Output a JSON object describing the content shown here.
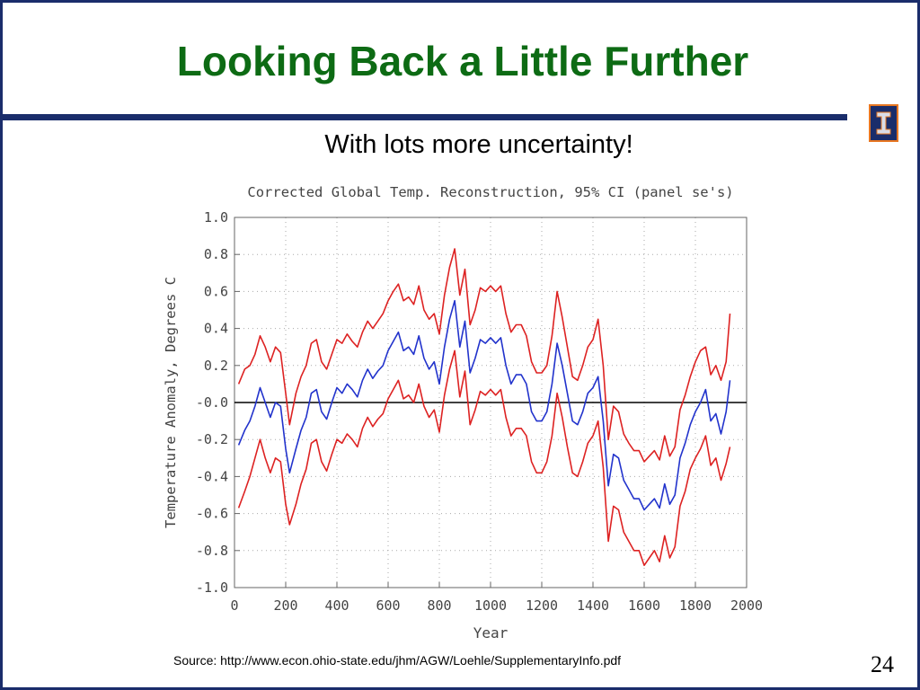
{
  "slide": {
    "title": "Looking Back a Little Further",
    "subtitle": "With lots more uncertainty!",
    "source": "Source: http://www.econ.ohio-state.edu/jhm/AGW/Loehle/SupplementaryInfo.pdf",
    "page_number": "24",
    "colors": {
      "title": "#0d6b14",
      "border": "#1a2d6b",
      "logo_accent": "#e87722"
    },
    "logo_icon": "illinois-block-i-icon"
  },
  "chart_data": {
    "type": "line",
    "title": "Corrected Global Temp. Reconstruction, 95% CI (panel se's)",
    "xlabel": "Year",
    "ylabel": "Temperature Anomaly, Degrees C",
    "xlim": [
      0,
      2000
    ],
    "ylim": [
      -1.0,
      1.0
    ],
    "x_tick_labels": [
      "0",
      "200",
      "400",
      "600",
      "800",
      "1000",
      "1200",
      "1400",
      "1600",
      "1800",
      "2000"
    ],
    "y_tick_labels": [
      "1.0",
      "0.8",
      "0.6",
      "0.4",
      "0.2",
      "-0.0",
      "-0.2",
      "-0.4",
      "-0.6",
      "-0.8",
      "-1.0"
    ],
    "grid": true,
    "reference_line": 0.0,
    "x": [
      16,
      40,
      60,
      80,
      100,
      120,
      140,
      160,
      180,
      200,
      215,
      240,
      260,
      280,
      300,
      320,
      340,
      360,
      380,
      400,
      420,
      440,
      460,
      480,
      500,
      520,
      540,
      560,
      580,
      600,
      620,
      640,
      660,
      680,
      700,
      720,
      740,
      760,
      780,
      800,
      820,
      840,
      860,
      880,
      900,
      920,
      940,
      960,
      980,
      1000,
      1020,
      1040,
      1060,
      1080,
      1100,
      1120,
      1140,
      1160,
      1180,
      1200,
      1220,
      1240,
      1260,
      1280,
      1300,
      1320,
      1340,
      1360,
      1380,
      1400,
      1420,
      1440,
      1460,
      1480,
      1500,
      1520,
      1540,
      1560,
      1580,
      1600,
      1620,
      1640,
      1660,
      1680,
      1700,
      1720,
      1740,
      1760,
      1780,
      1800,
      1820,
      1840,
      1860,
      1880,
      1900,
      1920,
      1935
    ],
    "series": [
      {
        "color": "#2233cc",
        "values": [
          -0.23,
          -0.15,
          -0.1,
          -0.02,
          0.08,
          0.0,
          -0.08,
          0.0,
          -0.02,
          -0.25,
          -0.38,
          -0.25,
          -0.15,
          -0.08,
          0.05,
          0.07,
          -0.05,
          -0.09,
          0.0,
          0.08,
          0.05,
          0.1,
          0.07,
          0.03,
          0.12,
          0.18,
          0.13,
          0.17,
          0.2,
          0.28,
          0.33,
          0.38,
          0.28,
          0.3,
          0.26,
          0.36,
          0.24,
          0.18,
          0.22,
          0.1,
          0.3,
          0.45,
          0.55,
          0.3,
          0.44,
          0.16,
          0.24,
          0.34,
          0.32,
          0.35,
          0.32,
          0.35,
          0.2,
          0.1,
          0.15,
          0.15,
          0.1,
          -0.05,
          -0.1,
          -0.1,
          -0.05,
          0.1,
          0.32,
          0.2,
          0.05,
          -0.1,
          -0.12,
          -0.05,
          0.05,
          0.08,
          0.14,
          -0.1,
          -0.45,
          -0.28,
          -0.3,
          -0.42,
          -0.47,
          -0.52,
          -0.52,
          -0.58,
          -0.55,
          -0.52,
          -0.57,
          -0.44,
          -0.55,
          -0.5,
          -0.3,
          -0.22,
          -0.12,
          -0.05,
          0.0,
          0.07,
          -0.1,
          -0.06,
          -0.17,
          -0.05,
          0.12
        ]
      },
      {
        "color": "#dd2222",
        "values": [
          0.1,
          0.18,
          0.2,
          0.26,
          0.36,
          0.3,
          0.22,
          0.3,
          0.27,
          0.05,
          -0.12,
          0.05,
          0.14,
          0.2,
          0.32,
          0.34,
          0.22,
          0.18,
          0.26,
          0.34,
          0.32,
          0.37,
          0.33,
          0.3,
          0.38,
          0.44,
          0.4,
          0.44,
          0.48,
          0.55,
          0.6,
          0.64,
          0.55,
          0.57,
          0.53,
          0.63,
          0.5,
          0.45,
          0.48,
          0.37,
          0.58,
          0.73,
          0.83,
          0.58,
          0.72,
          0.42,
          0.5,
          0.62,
          0.6,
          0.63,
          0.6,
          0.63,
          0.48,
          0.38,
          0.42,
          0.42,
          0.36,
          0.22,
          0.16,
          0.16,
          0.2,
          0.36,
          0.6,
          0.46,
          0.3,
          0.14,
          0.12,
          0.2,
          0.3,
          0.34,
          0.45,
          0.2,
          -0.2,
          -0.02,
          -0.05,
          -0.17,
          -0.22,
          -0.26,
          -0.26,
          -0.32,
          -0.29,
          -0.26,
          -0.31,
          -0.18,
          -0.29,
          -0.24,
          -0.04,
          0.04,
          0.14,
          0.22,
          0.28,
          0.3,
          0.15,
          0.2,
          0.12,
          0.22,
          0.48
        ]
      },
      {
        "color": "#dd2222",
        "values": [
          -0.57,
          -0.48,
          -0.4,
          -0.3,
          -0.2,
          -0.3,
          -0.38,
          -0.3,
          -0.32,
          -0.55,
          -0.66,
          -0.55,
          -0.44,
          -0.36,
          -0.22,
          -0.2,
          -0.32,
          -0.37,
          -0.28,
          -0.2,
          -0.22,
          -0.17,
          -0.2,
          -0.24,
          -0.14,
          -0.08,
          -0.13,
          -0.09,
          -0.06,
          0.02,
          0.07,
          0.12,
          0.02,
          0.04,
          0.0,
          0.1,
          -0.02,
          -0.08,
          -0.04,
          -0.16,
          0.04,
          0.18,
          0.28,
          0.03,
          0.17,
          -0.12,
          -0.04,
          0.06,
          0.04,
          0.07,
          0.04,
          0.07,
          -0.08,
          -0.18,
          -0.14,
          -0.14,
          -0.18,
          -0.32,
          -0.38,
          -0.38,
          -0.32,
          -0.18,
          0.05,
          -0.08,
          -0.24,
          -0.38,
          -0.4,
          -0.32,
          -0.22,
          -0.18,
          -0.1,
          -0.35,
          -0.75,
          -0.56,
          -0.58,
          -0.7,
          -0.75,
          -0.8,
          -0.8,
          -0.88,
          -0.84,
          -0.8,
          -0.86,
          -0.72,
          -0.84,
          -0.78,
          -0.56,
          -0.48,
          -0.36,
          -0.3,
          -0.25,
          -0.18,
          -0.34,
          -0.3,
          -0.42,
          -0.33,
          -0.24
        ]
      }
    ]
  }
}
